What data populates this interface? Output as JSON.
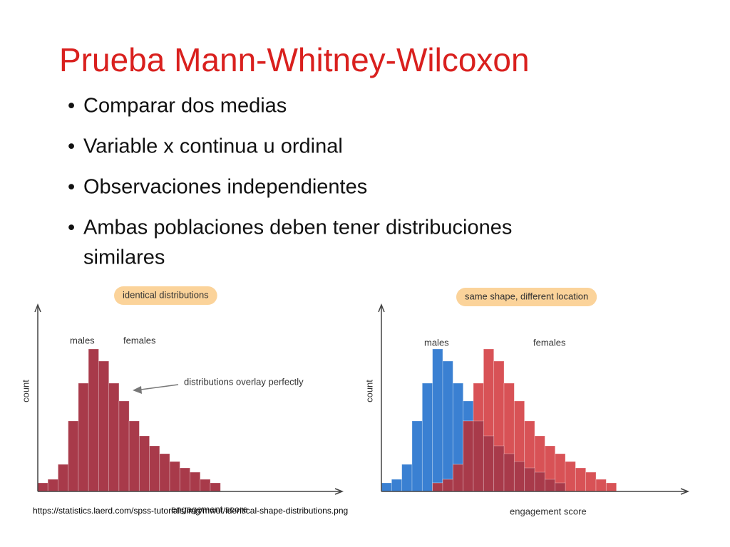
{
  "slide": {
    "title": "Prueba Mann-Whitney-Wilcoxon",
    "bullets": [
      "Comparar dos medias",
      "Variable x continua u ordinal",
      "Observaciones independientes",
      "Ambas poblaciones deben tener distribuciones",
      "similares"
    ],
    "source": "https://statistics.laerd.com/spss-tutorials/img/mwut/identical-shape-distributions.png"
  },
  "chart_data": [
    {
      "type": "histogram",
      "title": "identical distributions",
      "x_label": "engagement score",
      "y_label": "count",
      "annotation": "distributions overlay perfectly",
      "xlim": [
        0,
        30
      ],
      "ylim": [
        0,
        262
      ],
      "series": [
        {
          "name": "males",
          "color": "#a83a4a",
          "bins": [
            0,
            1,
            2,
            3,
            4,
            5,
            6,
            7,
            8,
            9,
            10,
            11,
            12,
            13,
            14,
            15,
            16,
            17,
            18
          ],
          "values": [
            12,
            17,
            38,
            99,
            152,
            200,
            183,
            152,
            127,
            99,
            78,
            64,
            53,
            42,
            33,
            27,
            17,
            12
          ]
        },
        {
          "name": "females",
          "color": "#a83a4a",
          "bins": [
            0,
            1,
            2,
            3,
            4,
            5,
            6,
            7,
            8,
            9,
            10,
            11,
            12,
            13,
            14,
            15,
            16,
            17,
            18
          ],
          "values": [
            12,
            17,
            38,
            99,
            152,
            200,
            183,
            152,
            127,
            99,
            78,
            64,
            53,
            42,
            33,
            27,
            17,
            12
          ]
        }
      ]
    },
    {
      "type": "histogram",
      "title": "same shape, different location",
      "x_label": "engagement score",
      "y_label": "count",
      "xlim": [
        0,
        30
      ],
      "ylim": [
        0,
        262
      ],
      "overlap_color": "#a83a4a",
      "series": [
        {
          "name": "males",
          "color": "#3a80d2",
          "bins": [
            0,
            1,
            2,
            3,
            4,
            5,
            6,
            7,
            8,
            9,
            10,
            11,
            12,
            13,
            14,
            15,
            16,
            17,
            18
          ],
          "values": [
            12,
            17,
            38,
            99,
            152,
            200,
            183,
            152,
            127,
            99,
            78,
            64,
            53,
            42,
            33,
            27,
            17,
            12
          ]
        },
        {
          "name": "females",
          "color": "#d85256",
          "bins": [
            5,
            6,
            7,
            8,
            9,
            10,
            11,
            12,
            13,
            14,
            15,
            16,
            17,
            18,
            19,
            20,
            21,
            22,
            23
          ],
          "values": [
            12,
            17,
            38,
            99,
            152,
            200,
            183,
            152,
            127,
            99,
            78,
            64,
            53,
            42,
            33,
            27,
            17,
            12
          ]
        }
      ]
    }
  ]
}
